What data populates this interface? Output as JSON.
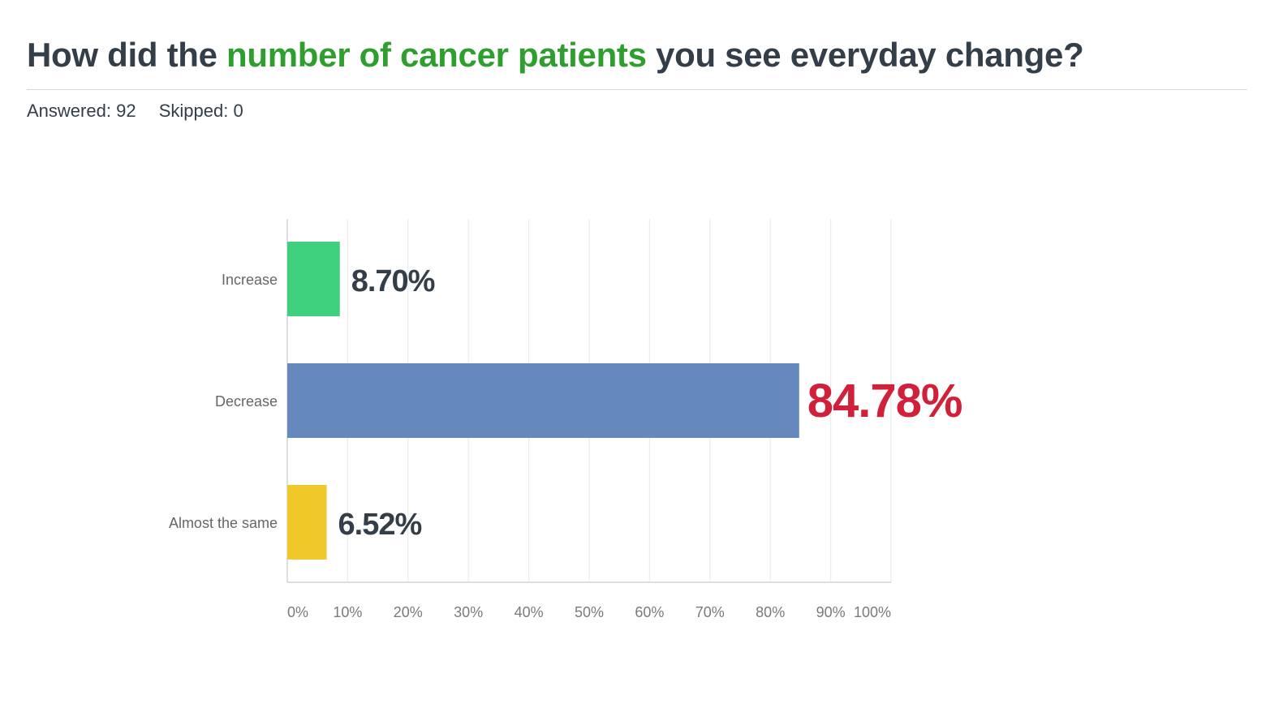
{
  "question": {
    "title_part1": "How did the ",
    "title_highlight": "number of cancer patients",
    "title_part2": " you see everyday change?",
    "highlight_color": "#2e9e2e"
  },
  "stats": {
    "answered_label": "Answered:",
    "answered_value": "92",
    "skipped_label": "Skipped:",
    "skipped_value": "0"
  },
  "chart_data": {
    "type": "bar",
    "orientation": "horizontal",
    "categories": [
      "Increase",
      "Decrease",
      "Almost the same"
    ],
    "values": [
      8.7,
      84.78,
      6.52
    ],
    "value_labels": [
      "8.70%",
      "84.78%",
      "6.52%"
    ],
    "colors": [
      "#3fd07e",
      "#6588bd",
      "#f0c82a"
    ],
    "value_label_colors": [
      "#333e48",
      "#d0203a",
      "#333e48"
    ],
    "xlim": [
      0,
      100
    ],
    "xticks": [
      "0%",
      "10%",
      "20%",
      "30%",
      "40%",
      "50%",
      "60%",
      "70%",
      "80%",
      "90%",
      "100%"
    ],
    "grid": true
  }
}
